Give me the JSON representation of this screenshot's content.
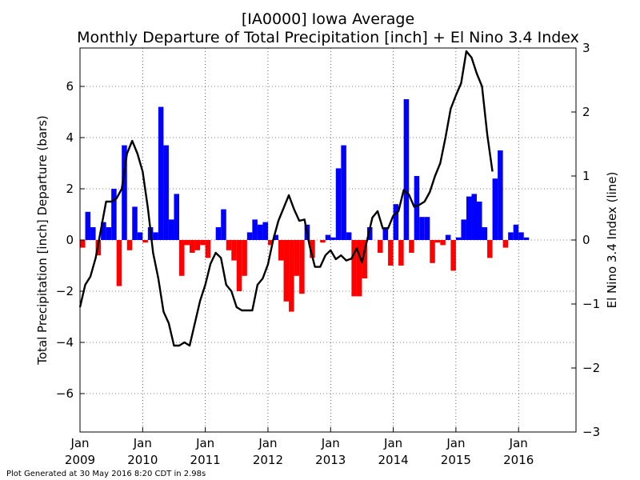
{
  "chart_data": {
    "type": "bar",
    "title": "[IA0000] Iowa Average",
    "subtitle": "Monthly Departure of Total Precipitation [inch] + El Nino 3.4 Index",
    "ylabel": "Total Precipitation [inch] Departure (bars)",
    "y2label": "El Nino 3.4 Index (line)",
    "footer": "Plot Generated at 30 May 2016 8:20 CDT in 2.98s",
    "xlim": [
      "2009-01",
      "2016-12"
    ],
    "ylim": [
      -7.5,
      7.5
    ],
    "y2lim": [
      -3,
      3
    ],
    "grid": true,
    "y_ticks": [
      "−6",
      "−4",
      "−2",
      "0",
      "2",
      "4",
      "6"
    ],
    "y2_ticks": [
      "−3",
      "−2",
      "−1",
      "0",
      "1",
      "2",
      "3"
    ],
    "x_ticks": [
      {
        "month": "Jan",
        "year": "2009"
      },
      {
        "month": "Jan",
        "year": "2010"
      },
      {
        "month": "Jan",
        "year": "2011"
      },
      {
        "month": "Jan",
        "year": "2012"
      },
      {
        "month": "Jan",
        "year": "2013"
      },
      {
        "month": "Jan",
        "year": "2014"
      },
      {
        "month": "Jan",
        "year": "2015"
      },
      {
        "month": "Jan",
        "year": "2016"
      }
    ],
    "bar_start": "2009-01",
    "bar_colors": {
      "positive": "#0000ff",
      "negative": "#ff0000"
    },
    "line_color": "#000000",
    "precip_departure": [
      -0.3,
      1.1,
      0.5,
      -0.6,
      0.7,
      0.5,
      2.0,
      -1.8,
      3.7,
      -0.4,
      1.3,
      0.3,
      -0.1,
      0.5,
      0.3,
      5.2,
      3.7,
      0.8,
      1.8,
      -1.4,
      -0.2,
      -0.5,
      -0.4,
      -0.2,
      -0.7,
      0.0,
      0.5,
      1.2,
      -0.4,
      -0.8,
      -2.0,
      -1.4,
      0.3,
      0.8,
      0.6,
      0.7,
      -0.2,
      0.2,
      -0.8,
      -2.4,
      -2.8,
      -1.4,
      -2.1,
      0.6,
      -0.7,
      0.0,
      -0.1,
      0.2,
      0.1,
      2.8,
      3.7,
      0.3,
      -2.2,
      -2.2,
      -1.5,
      0.5,
      0.0,
      -0.5,
      0.5,
      -1.0,
      1.4,
      -1.0,
      5.5,
      -0.5,
      2.5,
      0.9,
      0.9,
      -0.9,
      -0.1,
      -0.2,
      0.2,
      -1.2,
      0.1,
      0.8,
      1.7,
      1.8,
      1.5,
      0.5,
      -0.7,
      2.4,
      3.5,
      -0.3,
      0.3,
      0.6,
      0.3,
      0.1
    ],
    "enso_start": "2009-01",
    "enso_index": [
      -1.05,
      -0.7,
      -0.57,
      -0.28,
      0.16,
      0.6,
      0.6,
      0.65,
      0.8,
      1.35,
      1.55,
      1.35,
      1.07,
      0.5,
      -0.2,
      -0.6,
      -1.12,
      -1.3,
      -1.65,
      -1.65,
      -1.6,
      -1.65,
      -1.3,
      -0.95,
      -0.7,
      -0.37,
      -0.2,
      -0.28,
      -0.7,
      -0.8,
      -1.05,
      -1.1,
      -1.1,
      -1.1,
      -0.7,
      -0.6,
      -0.38,
      0.0,
      0.3,
      0.5,
      0.7,
      0.48,
      0.3,
      0.32,
      -0.1,
      -0.42,
      -0.42,
      -0.24,
      -0.16,
      -0.3,
      -0.24,
      -0.32,
      -0.29,
      -0.13,
      -0.35,
      0.0,
      0.35,
      0.45,
      0.18,
      0.18,
      0.38,
      0.45,
      0.78,
      0.71,
      0.52,
      0.55,
      0.6,
      0.75,
      1.0,
      1.2,
      1.6,
      2.05,
      2.26,
      2.45,
      2.95,
      2.85,
      2.6,
      2.4,
      1.65,
      1.07
    ]
  }
}
